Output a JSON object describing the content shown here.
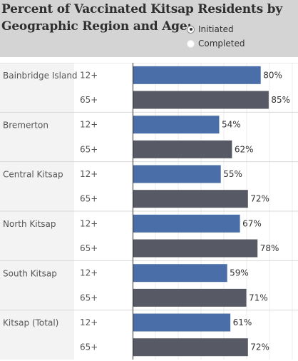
{
  "title_line1": "Percent of Vaccinated Kitsap Residents by",
  "title_line2": "Geographic Region and Age:",
  "filter": {
    "options": [
      {
        "label": "Initiated",
        "selected": true
      },
      {
        "label": "Completed",
        "selected": false
      }
    ]
  },
  "colors": {
    "age_12_plus": "#4a6fa8",
    "age_65_plus": "#575a64",
    "region_panel": "#f3f3f3",
    "header_bg": "#d4d4d4"
  },
  "chart_data": {
    "type": "bar",
    "orientation": "horizontal",
    "value_format": "percent",
    "xlim": [
      0,
      100
    ],
    "grid": true,
    "groups": [
      {
        "region": "Bainbridge Island",
        "bars": [
          {
            "age": "12+",
            "value": 80,
            "label": "80%"
          },
          {
            "age": "65+",
            "value": 85,
            "label": "85%"
          }
        ]
      },
      {
        "region": "Bremerton",
        "bars": [
          {
            "age": "12+",
            "value": 54,
            "label": "54%"
          },
          {
            "age": "65+",
            "value": 62,
            "label": "62%"
          }
        ]
      },
      {
        "region": "Central Kitsap",
        "bars": [
          {
            "age": "12+",
            "value": 55,
            "label": "55%"
          },
          {
            "age": "65+",
            "value": 72,
            "label": "72%"
          }
        ]
      },
      {
        "region": "North Kitsap",
        "bars": [
          {
            "age": "12+",
            "value": 67,
            "label": "67%"
          },
          {
            "age": "65+",
            "value": 78,
            "label": "78%"
          }
        ]
      },
      {
        "region": "South Kitsap",
        "bars": [
          {
            "age": "12+",
            "value": 59,
            "label": "59%"
          },
          {
            "age": "65+",
            "value": 71,
            "label": "71%"
          }
        ]
      },
      {
        "region": "Kitsap (Total)",
        "bars": [
          {
            "age": "12+",
            "value": 61,
            "label": "61%"
          },
          {
            "age": "65+",
            "value": 72,
            "label": "72%"
          }
        ]
      }
    ]
  }
}
